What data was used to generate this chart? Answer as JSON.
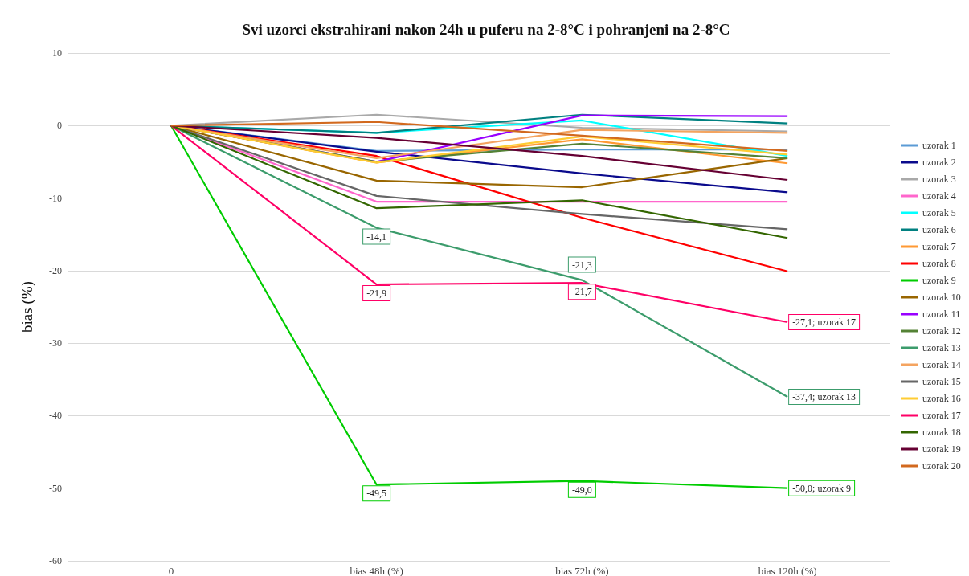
{
  "chart_data": {
    "type": "line",
    "title": "Svi uzorci ekstrahirani nakon 24h u puferu na 2-8°C i pohranjeni na 2-8°C",
    "ylabel": "bias (%)",
    "categories": [
      "0",
      "bias 48h (%)",
      "bias 72h (%)",
      "bias 120h (%)"
    ],
    "ylim": [
      -60,
      10
    ],
    "yticks": [
      -60,
      -50,
      -40,
      -30,
      -20,
      -10,
      0,
      10
    ],
    "grid": "y",
    "legend": "right",
    "marker": "none",
    "line_style": "solid",
    "series": [
      {
        "name": "uzorak 1",
        "color": "#5b9bd5",
        "values": [
          0,
          -3.5,
          -3.3,
          -3.3
        ]
      },
      {
        "name": "uzorak 2",
        "color": "#0a0a8c",
        "values": [
          0,
          -3.6,
          -6.6,
          -9.2
        ]
      },
      {
        "name": "uzorak 3",
        "color": "#a9a9a9",
        "values": [
          0,
          1.5,
          -0.3,
          -0.8
        ]
      },
      {
        "name": "uzorak 4",
        "color": "#ff66cc",
        "values": [
          0,
          -10.5,
          -10.5,
          -10.5
        ]
      },
      {
        "name": "uzorak 5",
        "color": "#00ffff",
        "values": [
          0,
          -1,
          0.7,
          -4.2
        ]
      },
      {
        "name": "uzorak 6",
        "color": "#008080",
        "values": [
          0,
          -1,
          1.5,
          0.3
        ]
      },
      {
        "name": "uzorak 7",
        "color": "#ff9933",
        "values": [
          0,
          -5.1,
          -1.9,
          -5.2
        ]
      },
      {
        "name": "uzorak 8",
        "color": "#ff0000",
        "values": [
          0,
          -4.2,
          -12.7,
          -20.1
        ]
      },
      {
        "name": "uzorak 9",
        "color": "#00cc00",
        "values": [
          0,
          -49.5,
          -49.0,
          -50.0
        ],
        "value_labels": [
          null,
          "-49,5",
          "-49,0",
          "-50,0; uzorak 9"
        ]
      },
      {
        "name": "uzorak 10",
        "color": "#996600",
        "values": [
          0,
          -7.6,
          -8.5,
          -4.5
        ]
      },
      {
        "name": "uzorak 11",
        "color": "#9900ff",
        "values": [
          0,
          -5,
          1.4,
          1.3
        ]
      },
      {
        "name": "uzorak 12",
        "color": "#548235",
        "values": [
          0,
          -5,
          -2.5,
          -4.5
        ]
      },
      {
        "name": "uzorak 13",
        "color": "#3c9c6c",
        "values": [
          0,
          -14.1,
          -21.3,
          -37.4
        ],
        "value_labels": [
          null,
          "-14,1",
          "-21,3",
          "-37,4; uzorak 13"
        ]
      },
      {
        "name": "uzorak 14",
        "color": "#f4a460",
        "values": [
          0,
          -4.5,
          -0.6,
          -1.0
        ]
      },
      {
        "name": "uzorak 15",
        "color": "#666666",
        "values": [
          0,
          -9.7,
          -12.2,
          -14.3
        ]
      },
      {
        "name": "uzorak 16",
        "color": "#ffcc33",
        "values": [
          0,
          -5.1,
          -1.5,
          -4
        ]
      },
      {
        "name": "uzorak 17",
        "color": "#ff0066",
        "values": [
          0,
          -21.9,
          -21.7,
          -27.1
        ],
        "value_labels": [
          null,
          "-21,9",
          "-21,7",
          "-27,1; uzorak 17"
        ]
      },
      {
        "name": "uzorak 18",
        "color": "#336600",
        "values": [
          0,
          -11.4,
          -10.3,
          -15.5
        ]
      },
      {
        "name": "uzorak 19",
        "color": "#660033",
        "values": [
          0,
          -1.7,
          -4.2,
          -7.5
        ]
      },
      {
        "name": "uzorak 20",
        "color": "#d2691e",
        "values": [
          0,
          0.5,
          -1.4,
          -3.5
        ]
      }
    ]
  }
}
